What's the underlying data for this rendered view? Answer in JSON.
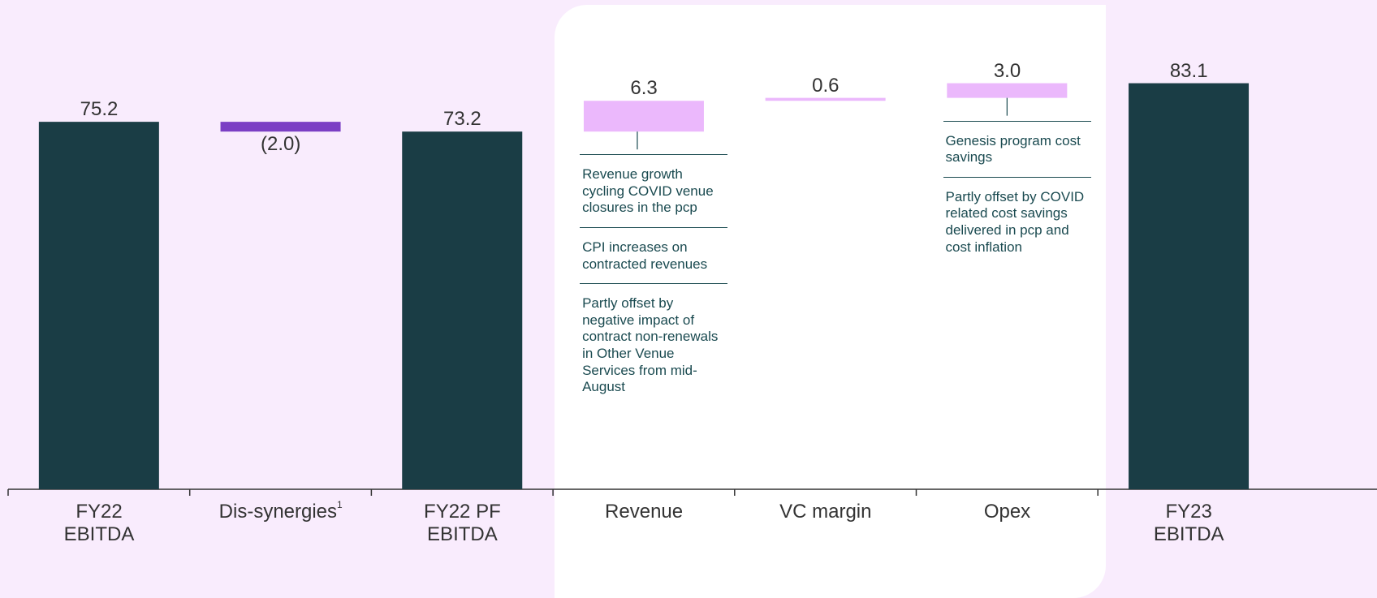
{
  "chart_data": {
    "type": "waterfall",
    "categories": [
      "FY22\nEBITDA",
      "Dis-synergies",
      "FY22 PF\nEBITDA",
      "Revenue",
      "VC margin",
      "Opex",
      "FY23\nEBITDA"
    ],
    "category_superscripts": [
      null,
      "1",
      null,
      null,
      null,
      null,
      null
    ],
    "values": [
      75.2,
      -2.0,
      73.2,
      6.3,
      0.6,
      3.0,
      83.1
    ],
    "value_labels": [
      "75.2",
      "(2.0)",
      "73.2",
      "6.3",
      "0.6",
      "3.0",
      "83.1"
    ],
    "is_total": [
      true,
      false,
      true,
      false,
      false,
      false,
      true
    ],
    "colors": [
      "#1a3d45",
      "#7b3fc4",
      "#1a3d45",
      "#ebb8fc",
      "#ebb8fc",
      "#ebb8fc",
      "#1a3d45"
    ],
    "ylim": [
      0,
      90
    ],
    "annotations": [
      {
        "category": "Revenue",
        "items": [
          "Revenue growth cycling COVID venue closures in the pcp",
          "CPI increases on contracted revenues",
          "Partly offset by negative impact of contract non-renewals in Other Venue Services from mid-August"
        ]
      },
      {
        "category": "Opex",
        "items": [
          "Genesis program cost savings",
          "Partly offset by COVID related cost savings delivered in pcp and cost inflation"
        ]
      }
    ]
  }
}
